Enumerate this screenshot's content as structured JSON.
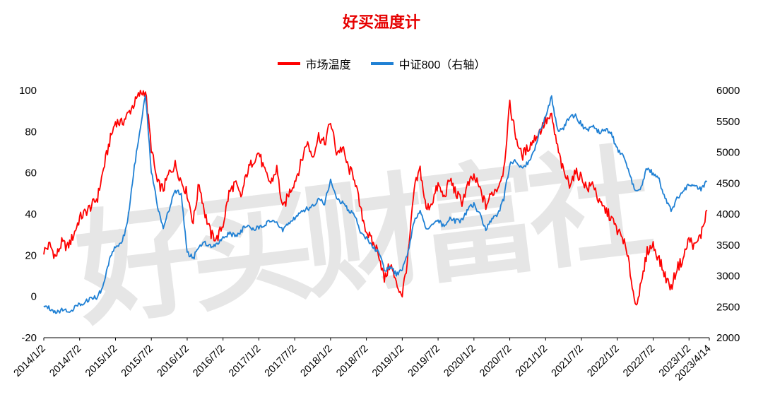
{
  "watermark": "好买财富社",
  "chart_data": {
    "type": "line",
    "title": "好买温度计",
    "title_color": "#e60000",
    "x_start": "2014/1/2",
    "x_end": "2023/4/14",
    "x_interval": "monthly",
    "x_tick_labels": [
      "2014/1/2",
      "2014/7/2",
      "2015/1/2",
      "2015/7/2",
      "2016/1/2",
      "2016/7/2",
      "2017/1/2",
      "2017/7/2",
      "2018/1/2",
      "2018/7/2",
      "2019/1/2",
      "2019/7/2",
      "2020/1/2",
      "2020/7/2",
      "2021/1/2",
      "2021/7/2",
      "2022/1/2",
      "2022/7/2",
      "2023/1/2",
      "2023/4/14"
    ],
    "left_axis": {
      "min": -20,
      "max": 100,
      "ticks": [
        100,
        80,
        60,
        40,
        20,
        0,
        -20
      ]
    },
    "right_axis": {
      "min": 2000,
      "max": 6000,
      "ticks": [
        6000,
        5500,
        5000,
        4500,
        4000,
        3500,
        3000,
        2500,
        2000
      ]
    },
    "legend_position": "top-center",
    "grid": false,
    "series": [
      {
        "name": "市场温度",
        "axis": "left",
        "color": "#fe0000",
        "values": [
          22,
          25,
          19,
          26,
          24,
          30,
          38,
          41,
          44,
          48,
          62,
          75,
          85,
          84,
          88,
          93,
          98,
          100,
          72,
          55,
          52,
          60,
          64,
          56,
          50,
          36,
          55,
          40,
          30,
          28,
          35,
          50,
          55,
          48,
          60,
          66,
          70,
          60,
          55,
          62,
          42,
          50,
          56,
          64,
          75,
          68,
          78,
          74,
          85,
          70,
          72,
          62,
          58,
          42,
          32,
          26,
          22,
          8,
          16,
          6,
          1,
          20,
          52,
          62,
          42,
          46,
          54,
          48,
          57,
          50,
          46,
          54,
          58,
          52,
          44,
          50,
          53,
          62,
          93,
          78,
          68,
          72,
          76,
          80,
          85,
          87,
          72,
          60,
          55,
          60,
          58,
          52,
          55,
          45,
          42,
          38,
          32,
          28,
          15,
          -4,
          5,
          22,
          25,
          18,
          10,
          4,
          14,
          18,
          28,
          24,
          30,
          42
        ]
      },
      {
        "name": "中证800（右轴）",
        "axis": "right",
        "color": "#1f80d4",
        "values": [
          2520,
          2480,
          2420,
          2450,
          2430,
          2470,
          2540,
          2590,
          2640,
          2660,
          2850,
          3280,
          3480,
          3520,
          3850,
          4650,
          5300,
          5950,
          4700,
          4150,
          3780,
          4080,
          4380,
          4320,
          3380,
          3280,
          3480,
          3540,
          3480,
          3530,
          3620,
          3680,
          3650,
          3720,
          3820,
          3740,
          3790,
          3840,
          3880,
          3840,
          3740,
          3870,
          3930,
          4020,
          4080,
          4130,
          4220,
          4180,
          4550,
          4250,
          4180,
          4060,
          4000,
          3720,
          3600,
          3460,
          3420,
          3080,
          3150,
          3020,
          3080,
          3400,
          3880,
          4080,
          3740,
          3830,
          3900,
          3780,
          3930,
          3880,
          3900,
          4080,
          4150,
          3980,
          3750,
          3920,
          3990,
          4250,
          4800,
          4880,
          4720,
          4820,
          5000,
          5320,
          5600,
          5900,
          5350,
          5400,
          5550,
          5600,
          5450,
          5350,
          5400,
          5320,
          5380,
          5300,
          5050,
          4950,
          4650,
          4350,
          4450,
          4750,
          4650,
          4550,
          4250,
          4050,
          4250,
          4350,
          4480,
          4430,
          4400,
          4520
        ]
      }
    ]
  }
}
